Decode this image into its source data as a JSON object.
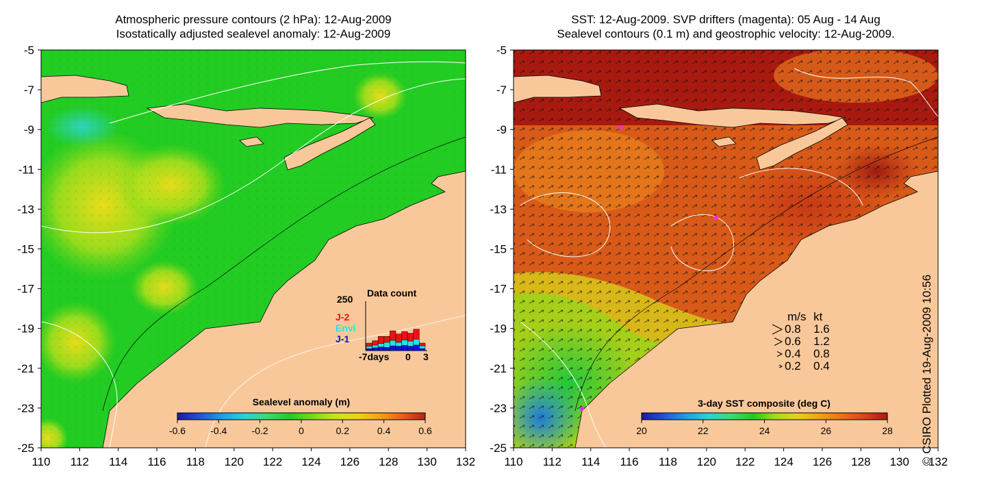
{
  "left_panel": {
    "title_line1": "Atmospheric pressure contours (2 hPa): 12-Aug-2009",
    "title_line2": "Isostatically adjusted sealevel anomaly: 12-Aug-2009",
    "x_ticks": [
      "110",
      "112",
      "114",
      "116",
      "118",
      "120",
      "122",
      "124",
      "126",
      "128",
      "130",
      "132"
    ],
    "y_ticks": [
      "-5",
      "-7",
      "-9",
      "-11",
      "-13",
      "-15",
      "-17",
      "-19",
      "-21",
      "-23",
      "-25"
    ],
    "colorbar": {
      "title": "Sealevel anomaly (m)",
      "ticks": [
        "-0.6",
        "-0.4",
        "-0.2",
        "0",
        "0.2",
        "0.4",
        "0.6"
      ],
      "colors": [
        "#1a1aa8",
        "#1f55d6",
        "#1fa0e6",
        "#2fd0d8",
        "#3cdc70",
        "#22cc22",
        "#7ada1a",
        "#c8e61a",
        "#f0d21a",
        "#f5a01a",
        "#e8601a",
        "#b42414"
      ]
    },
    "inset": {
      "title": "Data count",
      "max_label": "250",
      "x_labels": [
        "-7days",
        "0",
        "3"
      ],
      "legend": [
        {
          "label": "J-2",
          "color": "#ee1111"
        },
        {
          "label": "Envi",
          "color": "#22e4e4"
        },
        {
          "label": "J-1",
          "color": "#1111dd"
        }
      ],
      "bars": [
        {
          "j1": 10,
          "envi": 12,
          "j2": 16
        },
        {
          "j1": 14,
          "envi": 14,
          "j2": 22
        },
        {
          "j1": 18,
          "envi": 18,
          "j2": 36
        },
        {
          "j1": 16,
          "envi": 26,
          "j2": 30
        },
        {
          "j1": 24,
          "envi": 28,
          "j2": 48
        },
        {
          "j1": 22,
          "envi": 20,
          "j2": 42
        },
        {
          "j1": 26,
          "envi": 28,
          "j2": 42
        },
        {
          "j1": 22,
          "envi": 26,
          "j2": 40
        },
        {
          "j1": 28,
          "envi": 30,
          "j2": 50
        },
        {
          "j1": 10,
          "envi": 14,
          "j2": 14
        }
      ]
    }
  },
  "right_panel": {
    "title_line1": "SST: 12-Aug-2009. SVP drifters (magenta): 05 Aug - 14 Aug",
    "title_line2": "Sealevel contours (0.1 m) and geostrophic velocity: 12-Aug-2009.",
    "x_ticks": [
      "110",
      "112",
      "114",
      "116",
      "118",
      "120",
      "122",
      "124",
      "126",
      "128",
      "130",
      "132"
    ],
    "y_ticks": [
      "-5",
      "-7",
      "-9",
      "-11",
      "-13",
      "-15",
      "-17",
      "-19",
      "-21",
      "-23",
      "-25"
    ],
    "colorbar": {
      "title": "3-day SST composite (deg C)",
      "ticks": [
        "20",
        "22",
        "24",
        "26",
        "28"
      ],
      "colors": [
        "#1a1aa8",
        "#1f55d6",
        "#1fa0e6",
        "#2fd0d8",
        "#3cdc70",
        "#22cc22",
        "#a8dc1a",
        "#e6d21a",
        "#f0a01a",
        "#e8701a",
        "#d2461a",
        "#a81a10"
      ]
    },
    "velocity_legend": {
      "header_ms": "m/s",
      "header_kt": "kt",
      "rows": [
        {
          "ms": "0.8",
          "kt": "1.6"
        },
        {
          "ms": "0.6",
          "kt": "1.2"
        },
        {
          "ms": "0.4",
          "kt": "0.8"
        },
        {
          "ms": "0.2",
          "kt": "0.4"
        }
      ]
    }
  },
  "credit": "© CSIRO Plotted 19-Aug-2009 10:56",
  "colors": {
    "land": "#f9c89a",
    "contour": "#ffffff",
    "coast": "#000000"
  }
}
